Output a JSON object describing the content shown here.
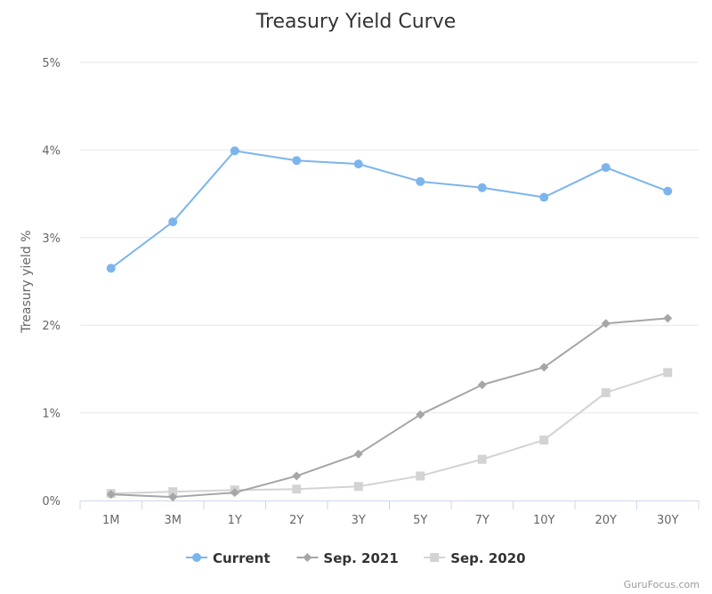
{
  "chart_data": {
    "type": "line",
    "title": "Treasury Yield Curve",
    "xlabel": "",
    "ylabel": "Treasury yield %",
    "categories": [
      "1M",
      "3M",
      "1Y",
      "2Y",
      "3Y",
      "5Y",
      "7Y",
      "10Y",
      "20Y",
      "30Y"
    ],
    "y_ticks": [
      "0%",
      "1%",
      "2%",
      "3%",
      "4%",
      "5%"
    ],
    "ylim": [
      0,
      5
    ],
    "grid": true,
    "legend_position": "bottom-center",
    "series": [
      {
        "name": "Current",
        "color": "#7cb5ec",
        "marker": "circle",
        "values": [
          2.65,
          3.18,
          3.99,
          3.88,
          3.84,
          3.64,
          3.57,
          3.46,
          3.8,
          3.53
        ]
      },
      {
        "name": "Sep. 2021",
        "color": "#a6a6a6",
        "marker": "diamond",
        "values": [
          0.07,
          0.04,
          0.09,
          0.28,
          0.53,
          0.98,
          1.32,
          1.52,
          2.02,
          2.08
        ]
      },
      {
        "name": "Sep. 2020",
        "color": "#d3d3d3",
        "marker": "square",
        "values": [
          0.08,
          0.1,
          0.12,
          0.13,
          0.16,
          0.28,
          0.47,
          0.69,
          1.23,
          1.46
        ]
      }
    ],
    "credit": "GuruFocus.com"
  }
}
